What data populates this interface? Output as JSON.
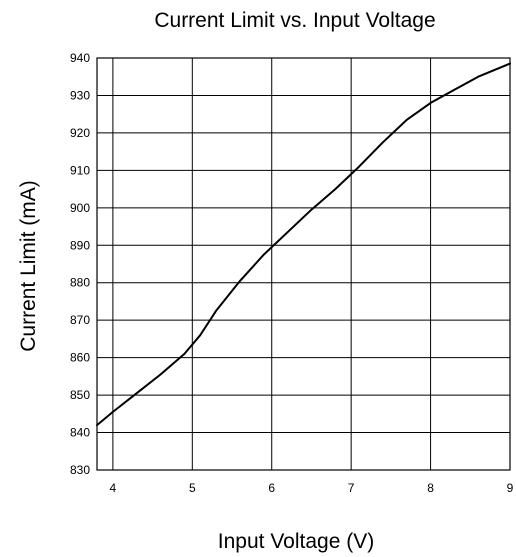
{
  "chart_data": {
    "type": "line",
    "title": "Current Limit vs. Input Voltage",
    "xlabel": "Input Voltage  (V)",
    "ylabel": "Current Limit (mA)",
    "xlim": [
      3.8,
      9
    ],
    "ylim": [
      830,
      940
    ],
    "xticks": [
      4,
      5,
      6,
      7,
      8,
      9
    ],
    "yticks": [
      830,
      840,
      850,
      860,
      870,
      880,
      890,
      900,
      910,
      920,
      930,
      940
    ],
    "grid": true,
    "series": [
      {
        "x": [
          3.8,
          4.0,
          4.3,
          4.6,
          4.9,
          5.1,
          5.3,
          5.6,
          5.9,
          6.2,
          6.5,
          6.8,
          7.1,
          7.4,
          7.7,
          8.0,
          8.3,
          8.6,
          9.0
        ],
        "y": [
          842,
          845.5,
          850.5,
          855.5,
          861,
          866,
          872.5,
          880.5,
          887.5,
          893.5,
          899.5,
          905,
          911,
          917.5,
          923.5,
          928,
          931.5,
          935,
          938.5
        ]
      }
    ]
  }
}
